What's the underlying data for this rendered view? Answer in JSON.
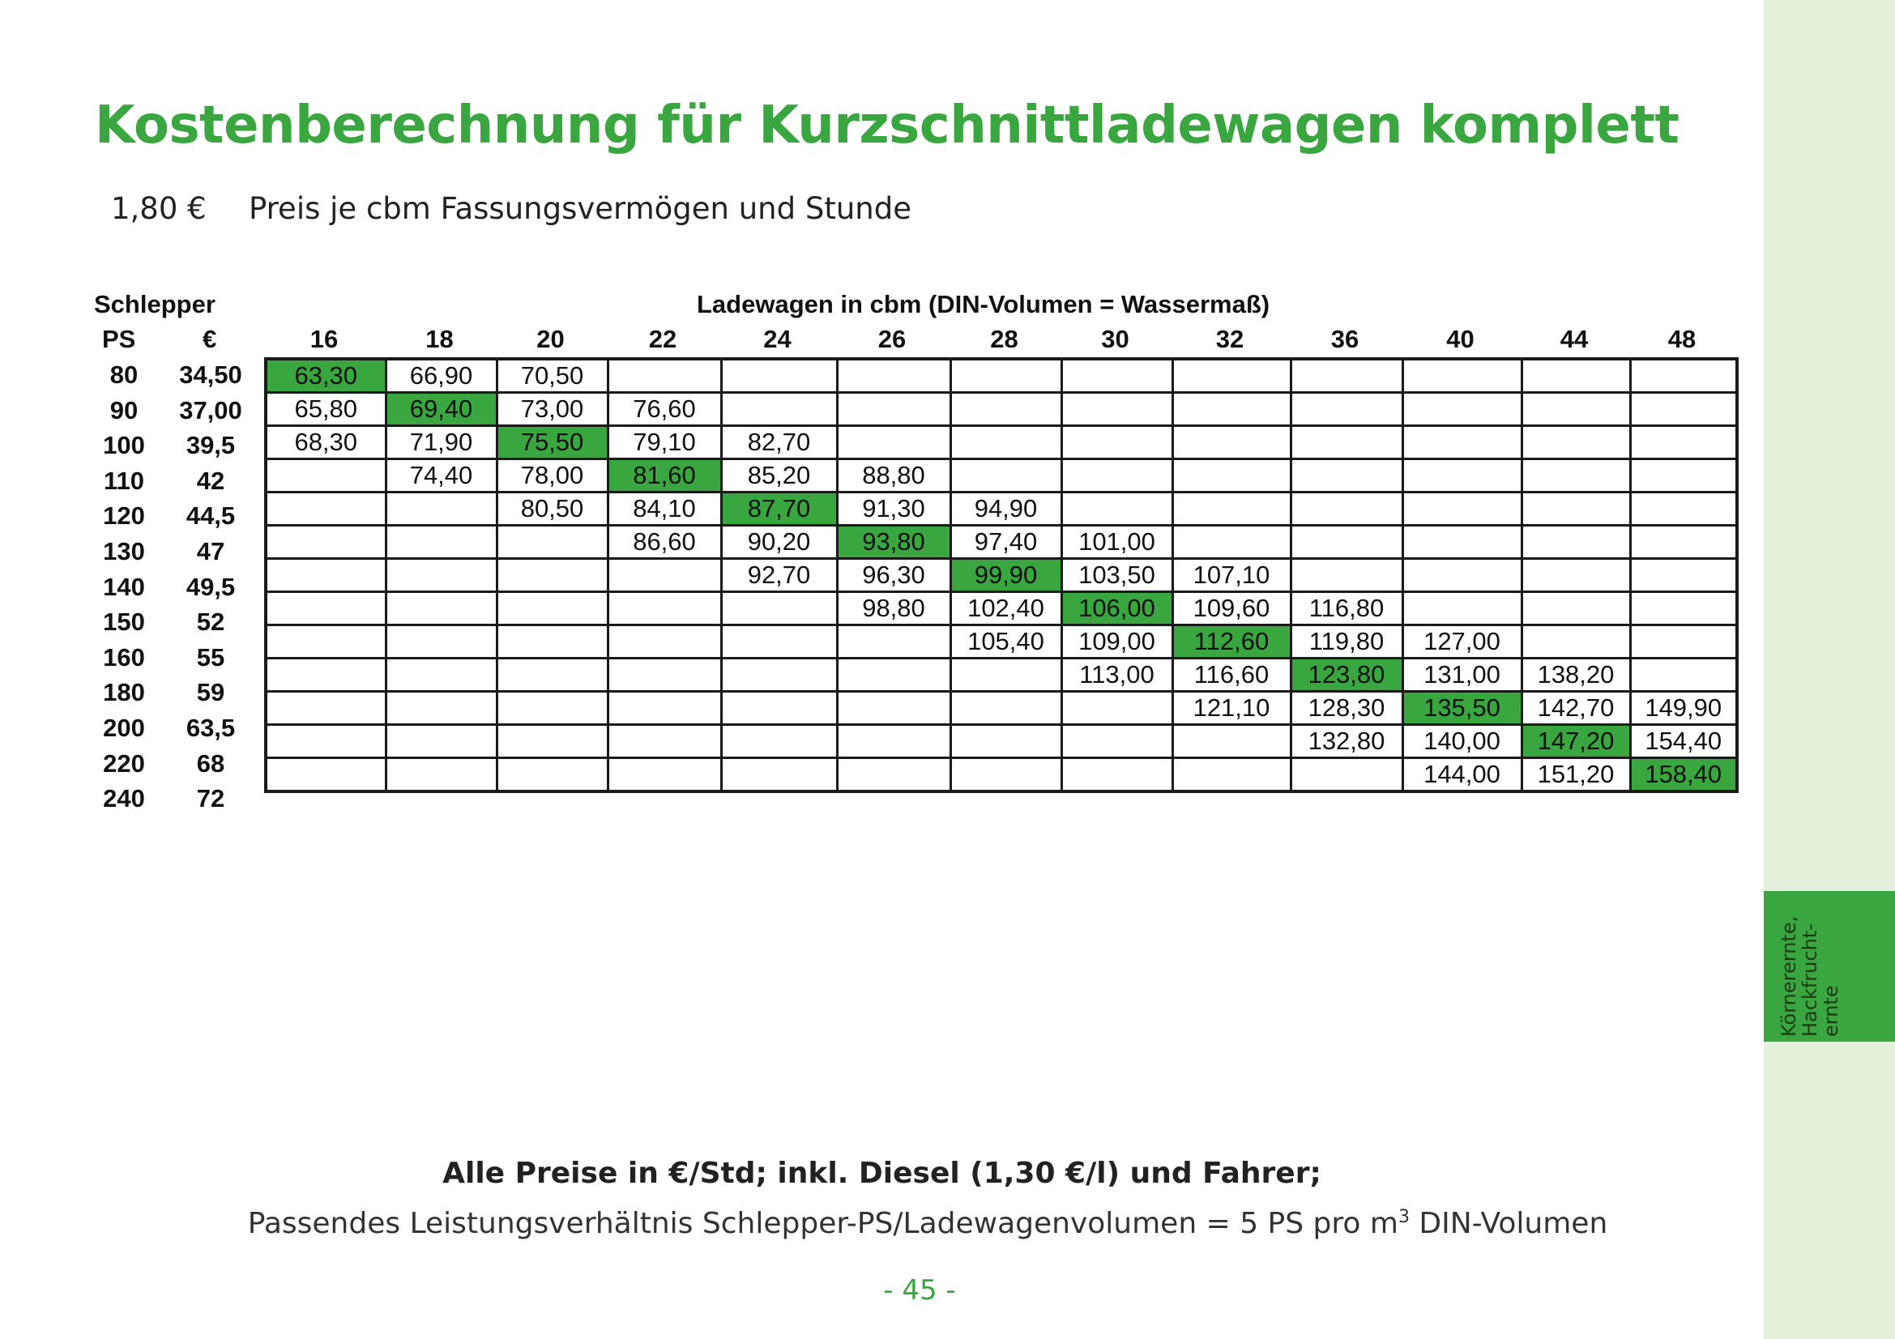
{
  "title": "Kostenberechnung für Kurzschnittladewagen komplett",
  "price": {
    "value": "1,80 €",
    "description": "Preis je cbm Fassungsvermögen und Stunde"
  },
  "table": {
    "tractor_label": "Schlepper",
    "ps_label": "PS",
    "eur_label": "€",
    "wagon_label": "Ladewagen in cbm (DIN-Volumen = Wassermaß)",
    "columns": [
      "16",
      "18",
      "20",
      "22",
      "24",
      "26",
      "28",
      "30",
      "32",
      "36",
      "40",
      "44",
      "48"
    ],
    "rows": [
      {
        "ps": "80",
        "eur": "34,50",
        "cells": [
          "63,30",
          "66,90",
          "70,50",
          "",
          "",
          "",
          "",
          "",
          "",
          "",
          "",
          "",
          ""
        ],
        "highlight": 0
      },
      {
        "ps": "90",
        "eur": "37,00",
        "cells": [
          "65,80",
          "69,40",
          "73,00",
          "76,60",
          "",
          "",
          "",
          "",
          "",
          "",
          "",
          "",
          ""
        ],
        "highlight": 1
      },
      {
        "ps": "100",
        "eur": "39,5",
        "cells": [
          "68,30",
          "71,90",
          "75,50",
          "79,10",
          "82,70",
          "",
          "",
          "",
          "",
          "",
          "",
          "",
          ""
        ],
        "highlight": 2
      },
      {
        "ps": "110",
        "eur": "42",
        "cells": [
          "",
          "74,40",
          "78,00",
          "81,60",
          "85,20",
          "88,80",
          "",
          "",
          "",
          "",
          "",
          "",
          ""
        ],
        "highlight": 3
      },
      {
        "ps": "120",
        "eur": "44,5",
        "cells": [
          "",
          "",
          "80,50",
          "84,10",
          "87,70",
          "91,30",
          "94,90",
          "",
          "",
          "",
          "",
          "",
          ""
        ],
        "highlight": 4
      },
      {
        "ps": "130",
        "eur": "47",
        "cells": [
          "",
          "",
          "",
          "86,60",
          "90,20",
          "93,80",
          "97,40",
          "101,00",
          "",
          "",
          "",
          "",
          ""
        ],
        "highlight": 5
      },
      {
        "ps": "140",
        "eur": "49,5",
        "cells": [
          "",
          "",
          "",
          "",
          "92,70",
          "96,30",
          "99,90",
          "103,50",
          "107,10",
          "",
          "",
          "",
          ""
        ],
        "highlight": 6
      },
      {
        "ps": "150",
        "eur": "52",
        "cells": [
          "",
          "",
          "",
          "",
          "",
          "98,80",
          "102,40",
          "106,00",
          "109,60",
          "116,80",
          "",
          "",
          ""
        ],
        "highlight": 7
      },
      {
        "ps": "160",
        "eur": "55",
        "cells": [
          "",
          "",
          "",
          "",
          "",
          "",
          "105,40",
          "109,00",
          "112,60",
          "119,80",
          "127,00",
          "",
          ""
        ],
        "highlight": 8
      },
      {
        "ps": "180",
        "eur": "59",
        "cells": [
          "",
          "",
          "",
          "",
          "",
          "",
          "",
          "113,00",
          "116,60",
          "123,80",
          "131,00",
          "138,20",
          ""
        ],
        "highlight": 9
      },
      {
        "ps": "200",
        "eur": "63,5",
        "cells": [
          "",
          "",
          "",
          "",
          "",
          "",
          "",
          "",
          "121,10",
          "128,30",
          "135,50",
          "142,70",
          "149,90"
        ],
        "highlight": 10
      },
      {
        "ps": "220",
        "eur": "68",
        "cells": [
          "",
          "",
          "",
          "",
          "",
          "",
          "",
          "",
          "",
          "132,80",
          "140,00",
          "147,20",
          "154,40"
        ],
        "highlight": 11
      },
      {
        "ps": "240",
        "eur": "72",
        "cells": [
          "",
          "",
          "",
          "",
          "",
          "",
          "",
          "",
          "",
          "",
          "144,00",
          "151,20",
          "158,40"
        ],
        "highlight": 12
      }
    ]
  },
  "footer": {
    "bold_line": "Alle Preise in €/Std; inkl. Diesel (1,30 €/l) und Fahrer;",
    "note_pre": "Passendes Leistungsverhältnis Schlepper-PS/Ladewagenvolumen = 5 PS pro m",
    "note_sup": "3",
    "note_post": " DIN-Volumen"
  },
  "page_number": "- 45 -",
  "side_tab": "Körnerernte,\nHackfrucht-\nernte",
  "colors": {
    "accent": "#3aa640",
    "side_strip": "#e3f1dc"
  }
}
